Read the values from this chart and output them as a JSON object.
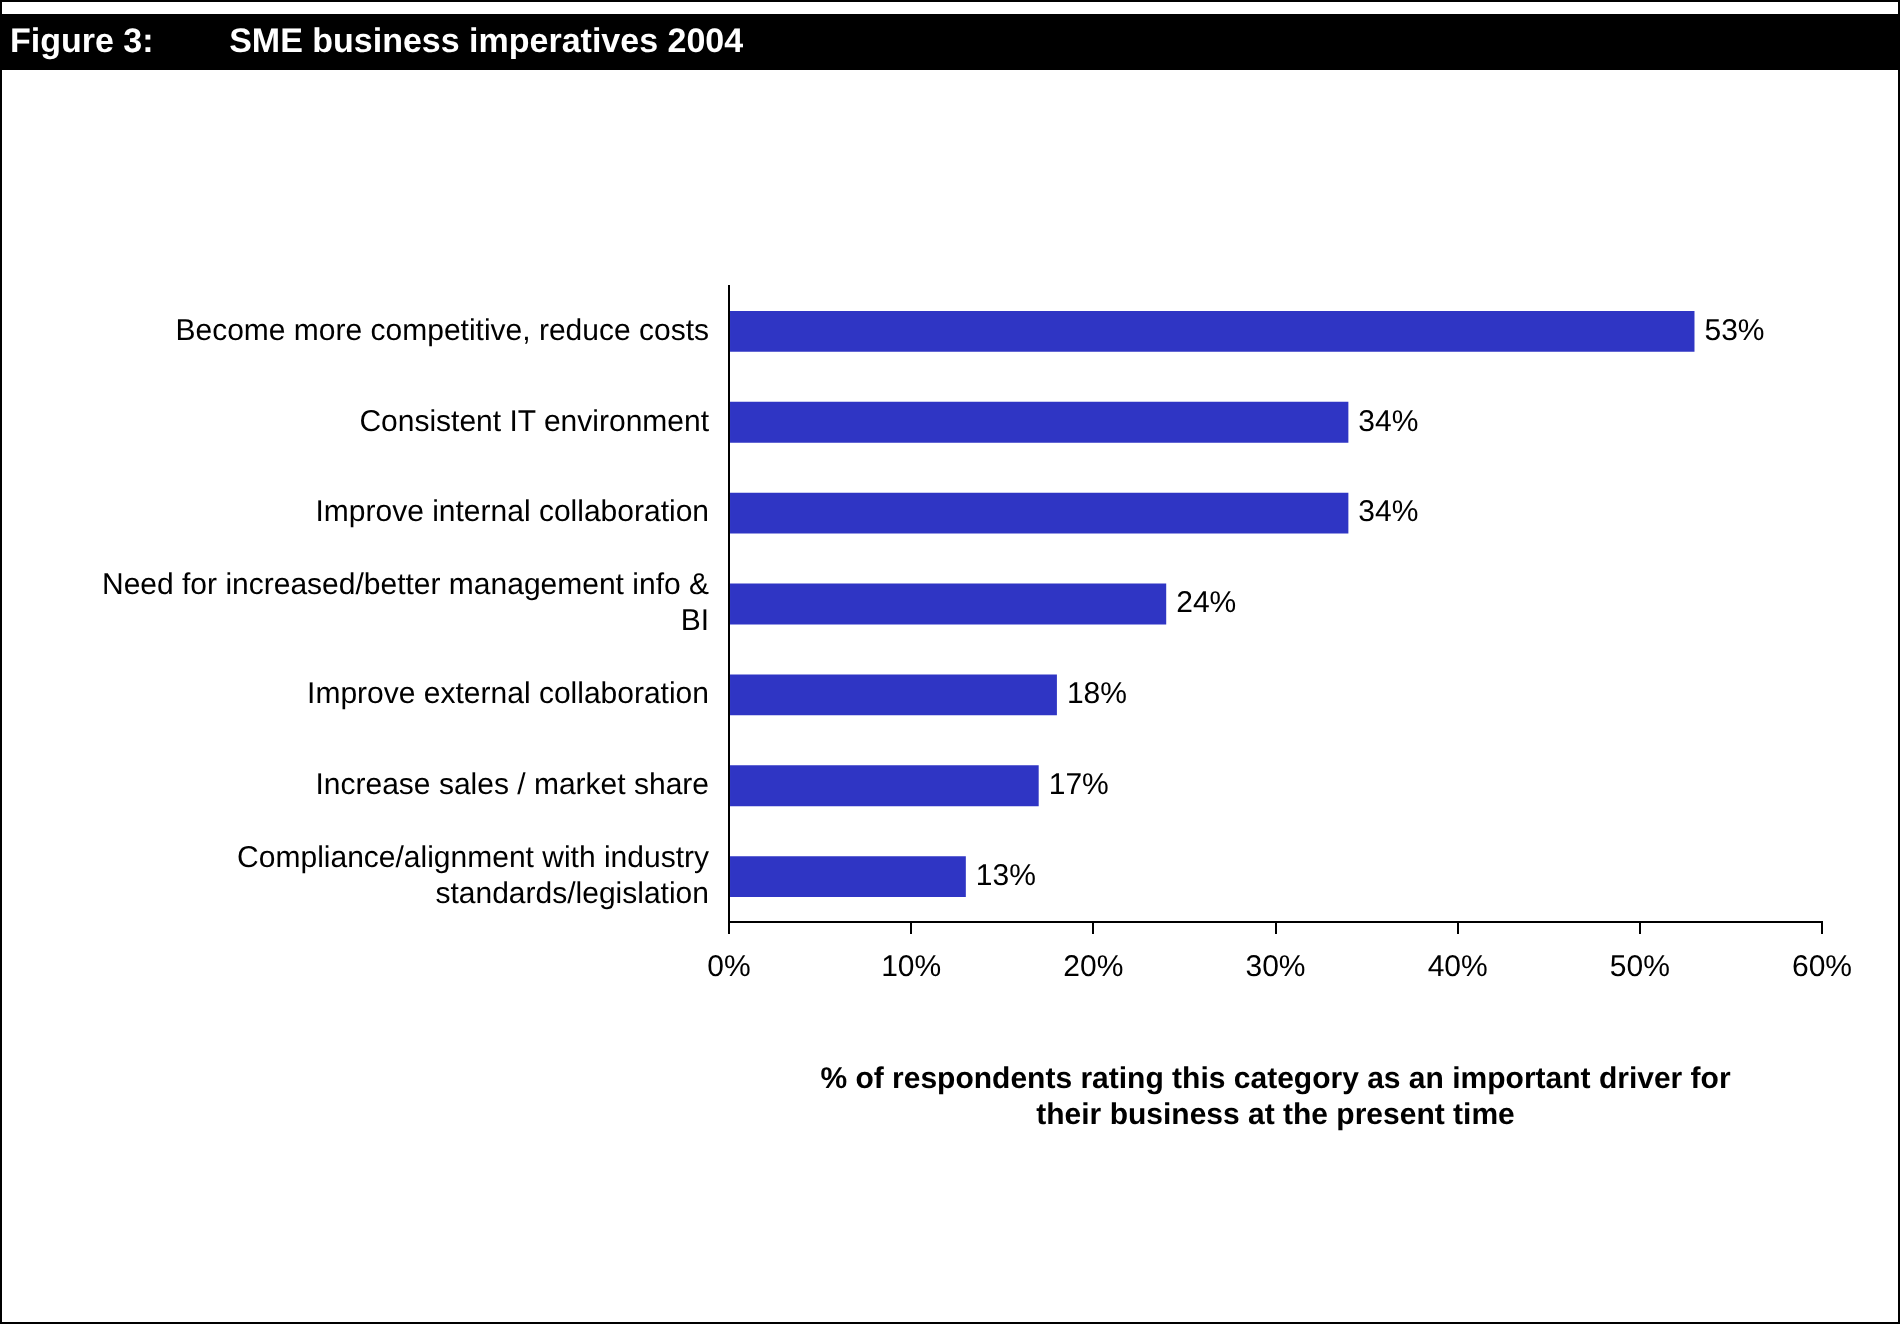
{
  "chart_data": {
    "type": "bar",
    "orientation": "horizontal",
    "title": "Figure 3:        SME business imperatives 2004",
    "categories": [
      "Become more competitive, reduce costs",
      "Consistent IT environment",
      "Improve internal collaboration",
      "Need for increased/better management info & BI",
      "Improve external collaboration",
      "Increase sales / market share",
      "Compliance/alignment with industry standards/legislation"
    ],
    "values": [
      53,
      34,
      34,
      24,
      18,
      17,
      13
    ],
    "value_labels": [
      "53%",
      "34%",
      "34%",
      "24%",
      "18%",
      "17%",
      "13%"
    ],
    "color": "#2f35c4",
    "xlim": [
      0,
      60
    ],
    "xticks": [
      {
        "value": 0,
        "label": "0%"
      },
      {
        "value": 10,
        "label": "10%"
      },
      {
        "value": 20,
        "label": "20%"
      },
      {
        "value": 30,
        "label": "30%"
      },
      {
        "value": 40,
        "label": "40%"
      },
      {
        "value": 50,
        "label": "50%"
      },
      {
        "value": 60,
        "label": "60%"
      }
    ],
    "xlabel": "% of respondents rating this category as an important driver for their business at the present time",
    "grid": false,
    "legend": false
  }
}
